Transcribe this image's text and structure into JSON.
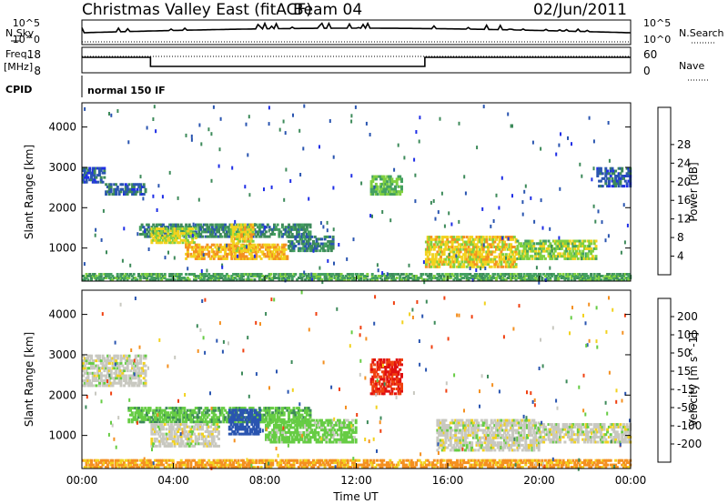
{
  "header": {
    "title": "Christmas Valley East (fitACF)",
    "beam": "Beam 04",
    "date": "02/Jun/2011"
  },
  "status_panels": {
    "nsky_label": "N.Sky",
    "nsearch_label": "N.Search",
    "noise_ticks": [
      "10^5",
      "10^0"
    ],
    "freq_label_1": "Freq.",
    "freq_label_2": "[MHz]",
    "freq_ticks": [
      "18",
      "8"
    ],
    "nave_label": "Nave",
    "nave_ticks": [
      "60",
      "0"
    ],
    "cpid_label": "CPID",
    "cpid_value": "normal 150 IF"
  },
  "x_axis": {
    "label": "Time UT",
    "ticks": [
      "00:00",
      "04:00",
      "08:00",
      "12:00",
      "16:00",
      "20:00",
      "00:00"
    ]
  },
  "colors": {
    "power_scale": [
      "#1f2ee6",
      "#2a55b0",
      "#3d8a5a",
      "#44a060",
      "#7fd040",
      "#f2d21e",
      "#f49020",
      "#f04010",
      "#e01010"
    ],
    "velocity_scale": [
      "#1f2ee6",
      "#2a55b0",
      "#3d8a5a",
      "#66cc44",
      "#c8c8c0",
      "#f2d21e",
      "#f49020",
      "#f04010",
      "#e01010"
    ]
  },
  "chart_data": [
    {
      "type": "heatmap",
      "name": "power",
      "title": "",
      "xlabel": "Time UT",
      "ylabel": "Slant Range [km]",
      "xlim_hours": [
        0,
        24
      ],
      "ylim": [
        180,
        4600
      ],
      "yticks": [
        1000,
        2000,
        3000,
        4000
      ],
      "colorbar_label": "Power [dB]",
      "colorbar_ticks": [
        4,
        8,
        12,
        16,
        20,
        24,
        28
      ],
      "colorbar_range": [
        0,
        32
      ],
      "regions": [
        {
          "t": [
            0.0,
            1.0
          ],
          "r": [
            2600,
            3000
          ],
          "value": 6
        },
        {
          "t": [
            1.0,
            2.8
          ],
          "r": [
            2300,
            2600
          ],
          "value": 7
        },
        {
          "t": [
            2.5,
            10.0
          ],
          "r": [
            1250,
            1600
          ],
          "value": 10
        },
        {
          "t": [
            3.0,
            5.0
          ],
          "r": [
            1100,
            1500
          ],
          "value": 20
        },
        {
          "t": [
            4.5,
            9.0
          ],
          "r": [
            700,
            1100
          ],
          "value": 24
        },
        {
          "t": [
            6.5,
            7.5
          ],
          "r": [
            900,
            1600
          ],
          "value": 22
        },
        {
          "t": [
            9.0,
            11.0
          ],
          "r": [
            900,
            1300
          ],
          "value": 10
        },
        {
          "t": [
            12.6,
            14.0
          ],
          "r": [
            2300,
            2800
          ],
          "value": 16
        },
        {
          "t": [
            15.0,
            19.0
          ],
          "r": [
            500,
            1300
          ],
          "value": 22
        },
        {
          "t": [
            19.0,
            22.5
          ],
          "r": [
            700,
            1200
          ],
          "value": 18
        },
        {
          "t": [
            0.0,
            24.0
          ],
          "r": [
            180,
            360
          ],
          "value": 14
        },
        {
          "t": [
            22.5,
            24.0
          ],
          "r": [
            2500,
            3000
          ],
          "value": 6
        }
      ]
    },
    {
      "type": "heatmap",
      "name": "velocity",
      "title": "",
      "xlabel": "Time UT",
      "ylabel": "Slant Range [km]",
      "xlim_hours": [
        0,
        24
      ],
      "ylim": [
        180,
        4600
      ],
      "yticks": [
        1000,
        2000,
        3000,
        4000
      ],
      "colorbar_label": "Velocity [m s^-1]",
      "colorbar_ticks": [
        200,
        100,
        50,
        15,
        -15,
        -50,
        -100,
        -200
      ],
      "colorbar_range": [
        -250,
        250
      ],
      "regions": [
        {
          "t": [
            0.0,
            2.8
          ],
          "r": [
            2200,
            3000
          ],
          "value": 0
        },
        {
          "t": [
            2.0,
            10.0
          ],
          "r": [
            1300,
            1700
          ],
          "value": 40
        },
        {
          "t": [
            3.0,
            6.0
          ],
          "r": [
            700,
            1300
          ],
          "value": 0
        },
        {
          "t": [
            6.4,
            7.8
          ],
          "r": [
            1000,
            1650
          ],
          "value": 180
        },
        {
          "t": [
            8.0,
            12.0
          ],
          "r": [
            800,
            1400
          ],
          "value": 30
        },
        {
          "t": [
            12.6,
            14.0
          ],
          "r": [
            2000,
            2900
          ],
          "value": -200
        },
        {
          "t": [
            15.5,
            20.0
          ],
          "r": [
            600,
            1400
          ],
          "value": 0
        },
        {
          "t": [
            20.0,
            24.0
          ],
          "r": [
            800,
            1300
          ],
          "value": 0
        },
        {
          "t": [
            0.0,
            24.0
          ],
          "r": [
            180,
            400
          ],
          "value": -60
        }
      ]
    }
  ]
}
